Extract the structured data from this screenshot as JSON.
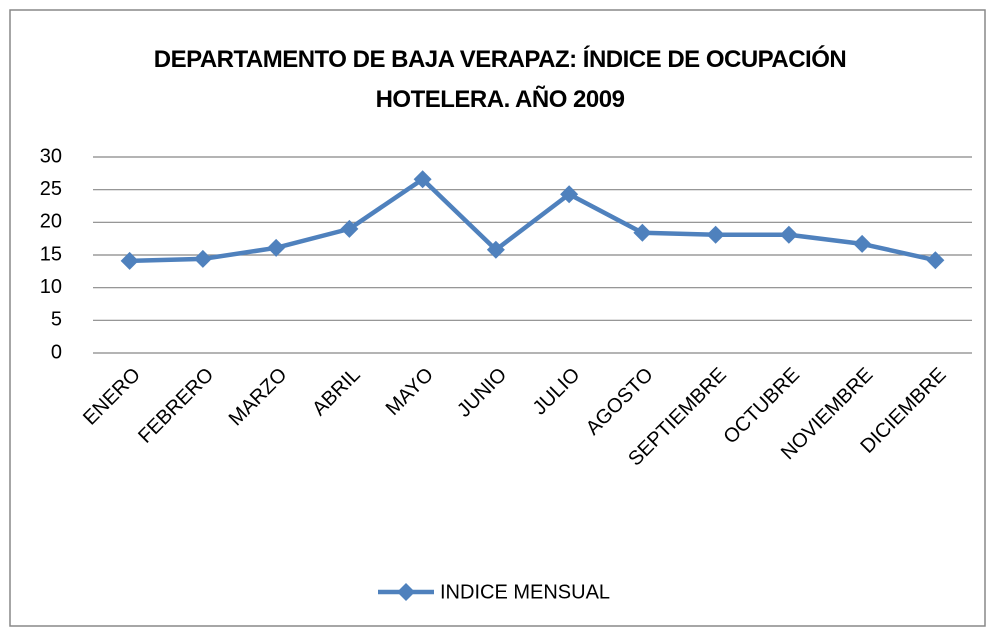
{
  "chart_data": {
    "type": "line",
    "title": "DEPARTAMENTO DE BAJA VERAPAZ: ÍNDICE DE OCUPACIÓN HOTELERA. AÑO 2009",
    "categories": [
      "ENERO",
      "FEBRERO",
      "MARZO",
      "ABRIL",
      "MAYO",
      "JUNIO",
      "JULIO",
      "AGOSTO",
      "SEPTIEMBRE",
      "OCTUBRE",
      "NOVIEMBRE",
      "DICIEMBRE"
    ],
    "series": [
      {
        "name": "INDICE MENSUAL",
        "color": "#4f81bd",
        "values": [
          14.1,
          14.4,
          16.1,
          19,
          26.6,
          15.8,
          24.3,
          18.4,
          18.1,
          18.1,
          16.7,
          14.2
        ]
      }
    ],
    "ylim": [
      0,
      30
    ],
    "yticks": [
      0,
      5,
      10,
      15,
      20,
      25,
      30
    ],
    "grid": true,
    "legend": "bottom"
  }
}
